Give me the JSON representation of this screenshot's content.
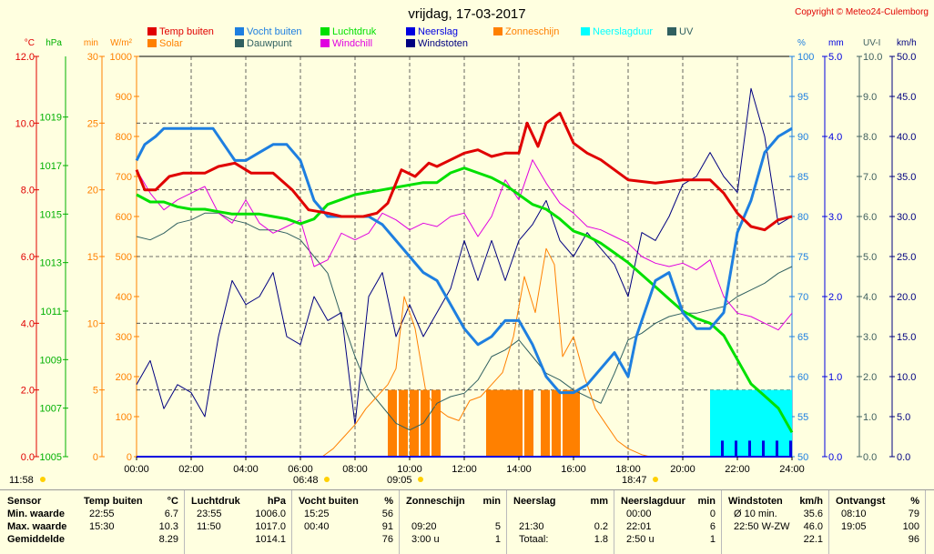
{
  "title": "vrijdag, 17-03-2017",
  "copyright": "Copyright © Meteo24-Culemborg",
  "colors": {
    "temp": "#e00000",
    "humidity": "#1e7fe0",
    "pressure": "#00e000",
    "rain": "#0000e0",
    "sun": "#ff8000",
    "raindur": "#00ffff",
    "uv": "#406060",
    "solar": "#ff8000",
    "dew": "#306060",
    "chill": "#e000e0",
    "gust": "#000080"
  },
  "legend": [
    {
      "label": "Temp buiten",
      "color": "#e00000"
    },
    {
      "label": "Vocht buiten",
      "color": "#1e7fe0"
    },
    {
      "label": "Luchtdruk",
      "color": "#00e000"
    },
    {
      "label": "Neerslag",
      "color": "#0000e0"
    },
    {
      "label": "Zonneschijn",
      "color": "#ff8000"
    },
    {
      "label": "Neerslagduur",
      "color": "#00ffff"
    },
    {
      "label": "UV",
      "color": "#306060"
    },
    {
      "label": "Solar",
      "color": "#ff8000"
    },
    {
      "label": "Dauwpunt",
      "color": "#306060"
    },
    {
      "label": "Windchill",
      "color": "#e000e0"
    },
    {
      "label": "Windstoten",
      "color": "#000080"
    }
  ],
  "axes": {
    "temp": {
      "unit": "°C",
      "ticks": [
        "12.0",
        "10.0",
        "8.0",
        "6.0",
        "4.0",
        "2.0",
        "0.0"
      ],
      "color": "#e00000"
    },
    "hpa": {
      "unit": "hPa",
      "ticks": [
        "1019",
        "1017",
        "1015",
        "1013",
        "1011",
        "1009",
        "1007",
        "1005"
      ],
      "color": "#00b000"
    },
    "min": {
      "unit": "min",
      "ticks": [
        "30",
        "25",
        "20",
        "15",
        "10",
        "5",
        "0"
      ],
      "color": "#ff8000"
    },
    "wm2": {
      "unit": "W/m²",
      "ticks": [
        "1000",
        "900",
        "800",
        "700",
        "600",
        "500",
        "400",
        "300",
        "200",
        "100",
        "0"
      ],
      "color": "#ff8000"
    },
    "pct": {
      "unit": "%",
      "ticks": [
        "100",
        "95",
        "90",
        "85",
        "80",
        "75",
        "70",
        "65",
        "60",
        "55",
        "50"
      ],
      "color": "#1e7fe0"
    },
    "mm": {
      "unit": "mm",
      "ticks": [
        "5.0",
        "4.0",
        "3.0",
        "2.0",
        "1.0",
        "0.0"
      ],
      "color": "#0000e0"
    },
    "uvi": {
      "unit": "UV-I",
      "ticks": [
        "10.0",
        "9.0",
        "8.0",
        "7.0",
        "6.0",
        "5.0",
        "4.0",
        "3.0",
        "2.0",
        "1.0",
        "0.0"
      ],
      "color": "#406060"
    },
    "kmh": {
      "unit": "km/h",
      "ticks": [
        "50.0",
        "45.0",
        "40.0",
        "35.0",
        "30.0",
        "25.0",
        "20.0",
        "15.0",
        "10.0",
        "5.0",
        "0.0"
      ],
      "color": "#000080"
    }
  },
  "x_ticks": [
    "00:00",
    "02:00",
    "04:00",
    "06:00",
    "08:00",
    "10:00",
    "12:00",
    "14:00",
    "16:00",
    "18:00",
    "20:00",
    "22:00",
    "24:00"
  ],
  "sun_marks": [
    "11:58",
    "06:48",
    "09:05",
    "18:47"
  ],
  "chart_data": {
    "type": "line",
    "x_unit": "hours",
    "x_range": [
      0,
      24
    ],
    "series": [
      {
        "name": "Temp buiten",
        "unit": "°C",
        "x": [
          0,
          0.3,
          0.7,
          1.2,
          1.7,
          2.5,
          3,
          3.6,
          4.2,
          5,
          5.7,
          6.3,
          7,
          7.5,
          8.3,
          8.8,
          9.2,
          9.7,
          10.2,
          10.7,
          11,
          11.5,
          12,
          12.5,
          13,
          13.5,
          14,
          14.3,
          14.7,
          15,
          15.5,
          16,
          16.5,
          17,
          17.5,
          18,
          19,
          20,
          21,
          21.5,
          22,
          22.5,
          23,
          23.5,
          24
        ],
        "y": [
          8.6,
          8.0,
          8.0,
          8.4,
          8.5,
          8.5,
          8.7,
          8.8,
          8.5,
          8.5,
          8.0,
          7.4,
          7.3,
          7.2,
          7.2,
          7.3,
          7.6,
          8.6,
          8.4,
          8.8,
          8.7,
          8.9,
          9.1,
          9.2,
          9.0,
          9.1,
          9.1,
          10.0,
          9.3,
          10.0,
          10.3,
          9.4,
          9.1,
          8.9,
          8.6,
          8.3,
          8.2,
          8.3,
          8.3,
          7.9,
          7.3,
          6.9,
          6.8,
          7.1,
          7.2
        ]
      },
      {
        "name": "Vocht buiten",
        "unit": "%",
        "x": [
          0,
          0.3,
          0.7,
          1,
          2,
          2.3,
          2.8,
          3.2,
          3.6,
          4,
          4.5,
          5,
          5.5,
          6,
          6.5,
          7,
          7.5,
          8,
          8.5,
          9,
          9.5,
          10,
          10.5,
          11,
          11.5,
          12,
          12.5,
          13,
          13.5,
          14,
          14.5,
          15,
          15.5,
          16,
          16.5,
          17,
          17.5,
          18,
          18.3,
          18.7,
          19,
          19.5,
          20,
          20.5,
          21,
          21.5,
          22,
          22.5,
          23,
          23.5,
          24
        ],
        "y": [
          87,
          89,
          90,
          91,
          91,
          91,
          91,
          89,
          87,
          87,
          88,
          89,
          89,
          87,
          82,
          80,
          80,
          80,
          80,
          79,
          77,
          75,
          73,
          72,
          69,
          66,
          64,
          65,
          67,
          67,
          64,
          60,
          58,
          58,
          59,
          61,
          63,
          60,
          65,
          69,
          72,
          73,
          68,
          66,
          66,
          68,
          78,
          82,
          88,
          90,
          91
        ]
      },
      {
        "name": "Luchtdruk",
        "unit": "hPa",
        "x": [
          0,
          0.5,
          1,
          1.5,
          2,
          2.5,
          3,
          3.5,
          4,
          4.5,
          5,
          5.5,
          6,
          6.5,
          7,
          7.5,
          8,
          8.5,
          9,
          9.5,
          10,
          10.5,
          11,
          11.5,
          12,
          12.5,
          13,
          13.5,
          14,
          14.5,
          15,
          15.5,
          16,
          16.5,
          17,
          17.5,
          18,
          18.5,
          19,
          19.5,
          20,
          20.5,
          21,
          21.5,
          22,
          22.5,
          23,
          23.5,
          24
        ],
        "y": [
          1015.8,
          1015.5,
          1015.5,
          1015.3,
          1015.2,
          1015.2,
          1015.1,
          1015.0,
          1015.0,
          1015.0,
          1014.9,
          1014.8,
          1014.6,
          1014.8,
          1015.4,
          1015.6,
          1015.8,
          1015.9,
          1016.0,
          1016.1,
          1016.2,
          1016.3,
          1016.3,
          1016.7,
          1016.9,
          1016.7,
          1016.5,
          1016.2,
          1015.8,
          1015.4,
          1015.2,
          1014.8,
          1014.3,
          1014.1,
          1013.8,
          1013.4,
          1013.0,
          1012.5,
          1012.0,
          1011.5,
          1011.0,
          1010.7,
          1010.5,
          1010.0,
          1009.0,
          1008.0,
          1007.5,
          1007.0,
          1006.0
        ]
      },
      {
        "name": "Dauwpunt",
        "unit": "°C",
        "x": [
          0,
          0.5,
          1,
          1.5,
          2,
          2.5,
          3,
          3.5,
          4,
          4.5,
          5,
          5.5,
          6,
          6.5,
          7,
          7.5,
          8,
          8.5,
          9,
          9.5,
          10,
          10.5,
          11,
          11.5,
          12,
          12.5,
          13,
          13.5,
          14,
          14.5,
          15,
          15.5,
          16,
          17,
          17.5,
          18,
          18.5,
          19,
          19.5,
          20,
          20.5,
          21,
          21.5,
          22,
          22.5,
          23,
          23.5,
          24
        ],
        "y": [
          6.6,
          6.5,
          6.7,
          7.0,
          7.1,
          7.3,
          7.3,
          7.1,
          7.0,
          6.8,
          6.8,
          6.7,
          6.5,
          6.0,
          5.5,
          4.2,
          3.0,
          2.0,
          1.5,
          1.0,
          0.8,
          1.0,
          1.6,
          1.8,
          1.9,
          2.3,
          3.0,
          3.2,
          3.5,
          3.0,
          2.5,
          2.3,
          2.0,
          1.6,
          2.5,
          3.5,
          3.7,
          4.0,
          4.2,
          4.3,
          4.3,
          4.4,
          4.5,
          4.8,
          5.0,
          5.2,
          5.5,
          5.7
        ]
      },
      {
        "name": "Windchill",
        "unit": "°C",
        "x": [
          0,
          0.5,
          1,
          1.5,
          2,
          2.5,
          3,
          3.5,
          4,
          4.5,
          5,
          5.5,
          6,
          6.5,
          7,
          7.5,
          8,
          8.5,
          9,
          9.5,
          10,
          10.5,
          11,
          11.5,
          12,
          12.5,
          13,
          13.5,
          14,
          14.5,
          15,
          15.5,
          16,
          16.5,
          17,
          17.5,
          18,
          18.5,
          19,
          19.5,
          20,
          20.5,
          21,
          21.5,
          22,
          22.5,
          23,
          23.5,
          24
        ],
        "y": [
          8.6,
          7.9,
          7.4,
          7.7,
          7.9,
          8.1,
          7.3,
          7.0,
          7.7,
          7.0,
          6.7,
          6.9,
          7.1,
          5.7,
          5.9,
          6.7,
          6.5,
          6.7,
          7.3,
          7.1,
          6.8,
          7.0,
          6.9,
          7.2,
          7.3,
          6.6,
          7.2,
          8.3,
          7.7,
          8.9,
          8.2,
          7.6,
          7.3,
          6.9,
          6.8,
          6.6,
          6.4,
          6.0,
          5.8,
          5.7,
          5.8,
          5.6,
          5.9,
          4.8,
          4.3,
          4.2,
          4.0,
          3.8,
          4.3
        ]
      },
      {
        "name": "Windstoten",
        "unit": "km/h",
        "x": [
          0,
          0.5,
          1,
          1.5,
          2,
          2.5,
          3,
          3.5,
          4,
          4.5,
          5,
          5.5,
          6,
          6.5,
          7,
          7.5,
          8,
          8.5,
          9,
          9.5,
          10,
          10.5,
          11,
          11.5,
          12,
          12.5,
          13,
          13.5,
          14,
          14.5,
          15,
          15.5,
          16,
          16.5,
          17,
          17.5,
          18,
          18.5,
          19,
          19.5,
          20,
          20.5,
          21,
          21.5,
          22,
          22.5,
          23,
          23.5,
          24
        ],
        "y": [
          9,
          12,
          6,
          9,
          8,
          5,
          15,
          22,
          19,
          20,
          23,
          15,
          14,
          20,
          17,
          18,
          4,
          20,
          23,
          15,
          19,
          15,
          18,
          21,
          27,
          22,
          27,
          22,
          27,
          29,
          32,
          27,
          25,
          28,
          26,
          24,
          20,
          28,
          27,
          30,
          34,
          35,
          38,
          35,
          33,
          46,
          40,
          29,
          30
        ]
      },
      {
        "name": "Solar",
        "unit": "W/m²",
        "x": [
          0,
          6.8,
          7.2,
          7.6,
          8,
          8.4,
          8.8,
          9.2,
          9.5,
          9.8,
          10.2,
          10.6,
          11,
          11.4,
          11.8,
          12.2,
          12.6,
          13,
          13.4,
          13.8,
          14.2,
          14.6,
          15,
          15.3,
          15.6,
          16,
          16.4,
          16.8,
          17.2,
          17.6,
          18,
          18.5,
          18.8,
          24
        ],
        "y": [
          0,
          0,
          20,
          50,
          80,
          120,
          150,
          180,
          220,
          400,
          320,
          160,
          120,
          100,
          90,
          140,
          150,
          180,
          210,
          300,
          450,
          360,
          520,
          480,
          250,
          300,
          200,
          120,
          80,
          40,
          20,
          5,
          0,
          0
        ]
      },
      {
        "name": "Zonneschijn",
        "unit": "min",
        "x": [
          9.2,
          9.6,
          10,
          10.4,
          10.8,
          12.8,
          13.1,
          13.3,
          13.6,
          13.8,
          14.2,
          14.8,
          15.2,
          15.6,
          15.9
        ],
        "y": [
          5,
          5,
          5,
          5,
          5,
          5,
          5,
          5,
          5,
          5,
          5,
          5,
          5,
          5,
          5
        ]
      },
      {
        "name": "Neerslagduur",
        "unit": "min",
        "x": [
          21,
          21.5,
          22,
          22.5,
          23,
          23.5,
          24
        ],
        "y": [
          5,
          5,
          5,
          5,
          5,
          5,
          5
        ]
      },
      {
        "name": "Neerslag",
        "unit": "mm",
        "x": [
          21.5,
          22,
          22.5,
          23,
          23.5,
          24
        ],
        "y": [
          0.2,
          0.2,
          0.2,
          0.2,
          0.2,
          0.2
        ]
      }
    ]
  },
  "table": {
    "sensor_header": "Sensor",
    "row_labels": [
      "Min. waarde",
      "Max. waarde",
      "Gemiddelde"
    ],
    "groups": [
      {
        "title": "Temp buiten",
        "unit": "°C",
        "rows": [
          [
            "22:55",
            "6.7"
          ],
          [
            "15:30",
            "10.3"
          ],
          [
            "",
            "8.29"
          ]
        ]
      },
      {
        "title": "Luchtdruk",
        "unit": "hPa",
        "rows": [
          [
            "23:55",
            "1006.0"
          ],
          [
            "11:50",
            "1017.0"
          ],
          [
            "",
            "1014.1"
          ]
        ]
      },
      {
        "title": "Vocht buiten",
        "unit": "%",
        "rows": [
          [
            "15:25",
            "56"
          ],
          [
            "00:40",
            "91"
          ],
          [
            "",
            "76"
          ]
        ]
      },
      {
        "title": "Zonneschijn",
        "unit": "min",
        "rows": [
          [
            "",
            ""
          ],
          [
            "09:20",
            "5"
          ],
          [
            "3:00 u",
            "1"
          ]
        ]
      },
      {
        "title": "Neerslag",
        "unit": "mm",
        "rows": [
          [
            "",
            ""
          ],
          [
            "21:30",
            "0.2"
          ],
          [
            "Totaal:",
            "1.8"
          ]
        ]
      },
      {
        "title": "Neerslagduur",
        "unit": "min",
        "rows": [
          [
            "00:00",
            "0"
          ],
          [
            "22:01",
            "6"
          ],
          [
            "2:50 u",
            "1"
          ]
        ]
      },
      {
        "title": "Windstoten",
        "unit": "km/h",
        "rows": [
          [
            "Ø 10 min.",
            "35.6"
          ],
          [
            "22:50  W-ZW",
            "46.0"
          ],
          [
            "",
            "22.1"
          ]
        ]
      },
      {
        "title": "Ontvangst",
        "unit": "%",
        "rows": [
          [
            "08:10",
            "79"
          ],
          [
            "19:05",
            "100"
          ],
          [
            "",
            "96"
          ]
        ]
      }
    ]
  }
}
